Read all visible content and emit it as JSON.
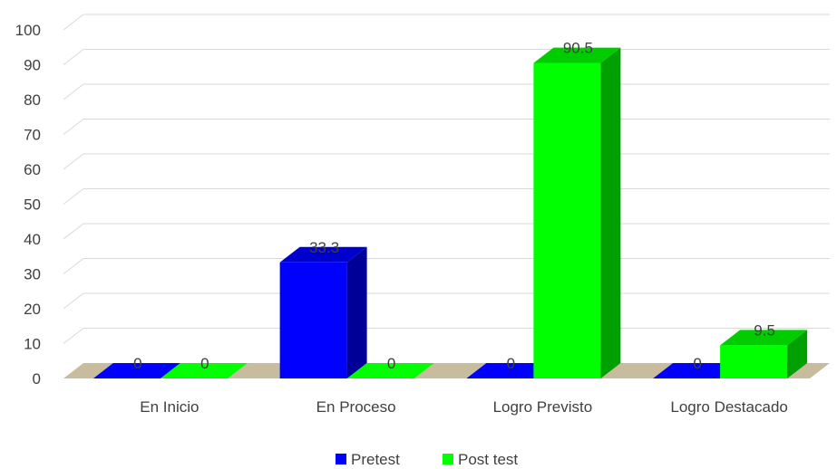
{
  "chart_data": {
    "type": "bar",
    "style": "3d-clustered-column",
    "categories": [
      "En Inicio",
      "En Proceso",
      "Logro Previsto",
      "Logro Destacado"
    ],
    "series": [
      {
        "name": "Pretest",
        "values": [
          0,
          33.3,
          0,
          0
        ],
        "labels": [
          "0",
          "33.3",
          "0",
          "0"
        ],
        "color": "#0000FF",
        "side_color": "#000099",
        "top_color": "#0000CC"
      },
      {
        "name": "Post test",
        "values": [
          0,
          0,
          90.5,
          9.5
        ],
        "labels": [
          "0",
          "0",
          "90.5",
          "9.5"
        ],
        "color": "#00FF00",
        "side_color": "#00A000",
        "top_color": "#00CC00"
      }
    ],
    "yticks": [
      0,
      10,
      20,
      30,
      40,
      50,
      60,
      70,
      80,
      90,
      100
    ],
    "ylim": [
      0,
      100
    ],
    "grid": true,
    "floor_color": "#C8BC9E",
    "legend_position": "bottom"
  }
}
